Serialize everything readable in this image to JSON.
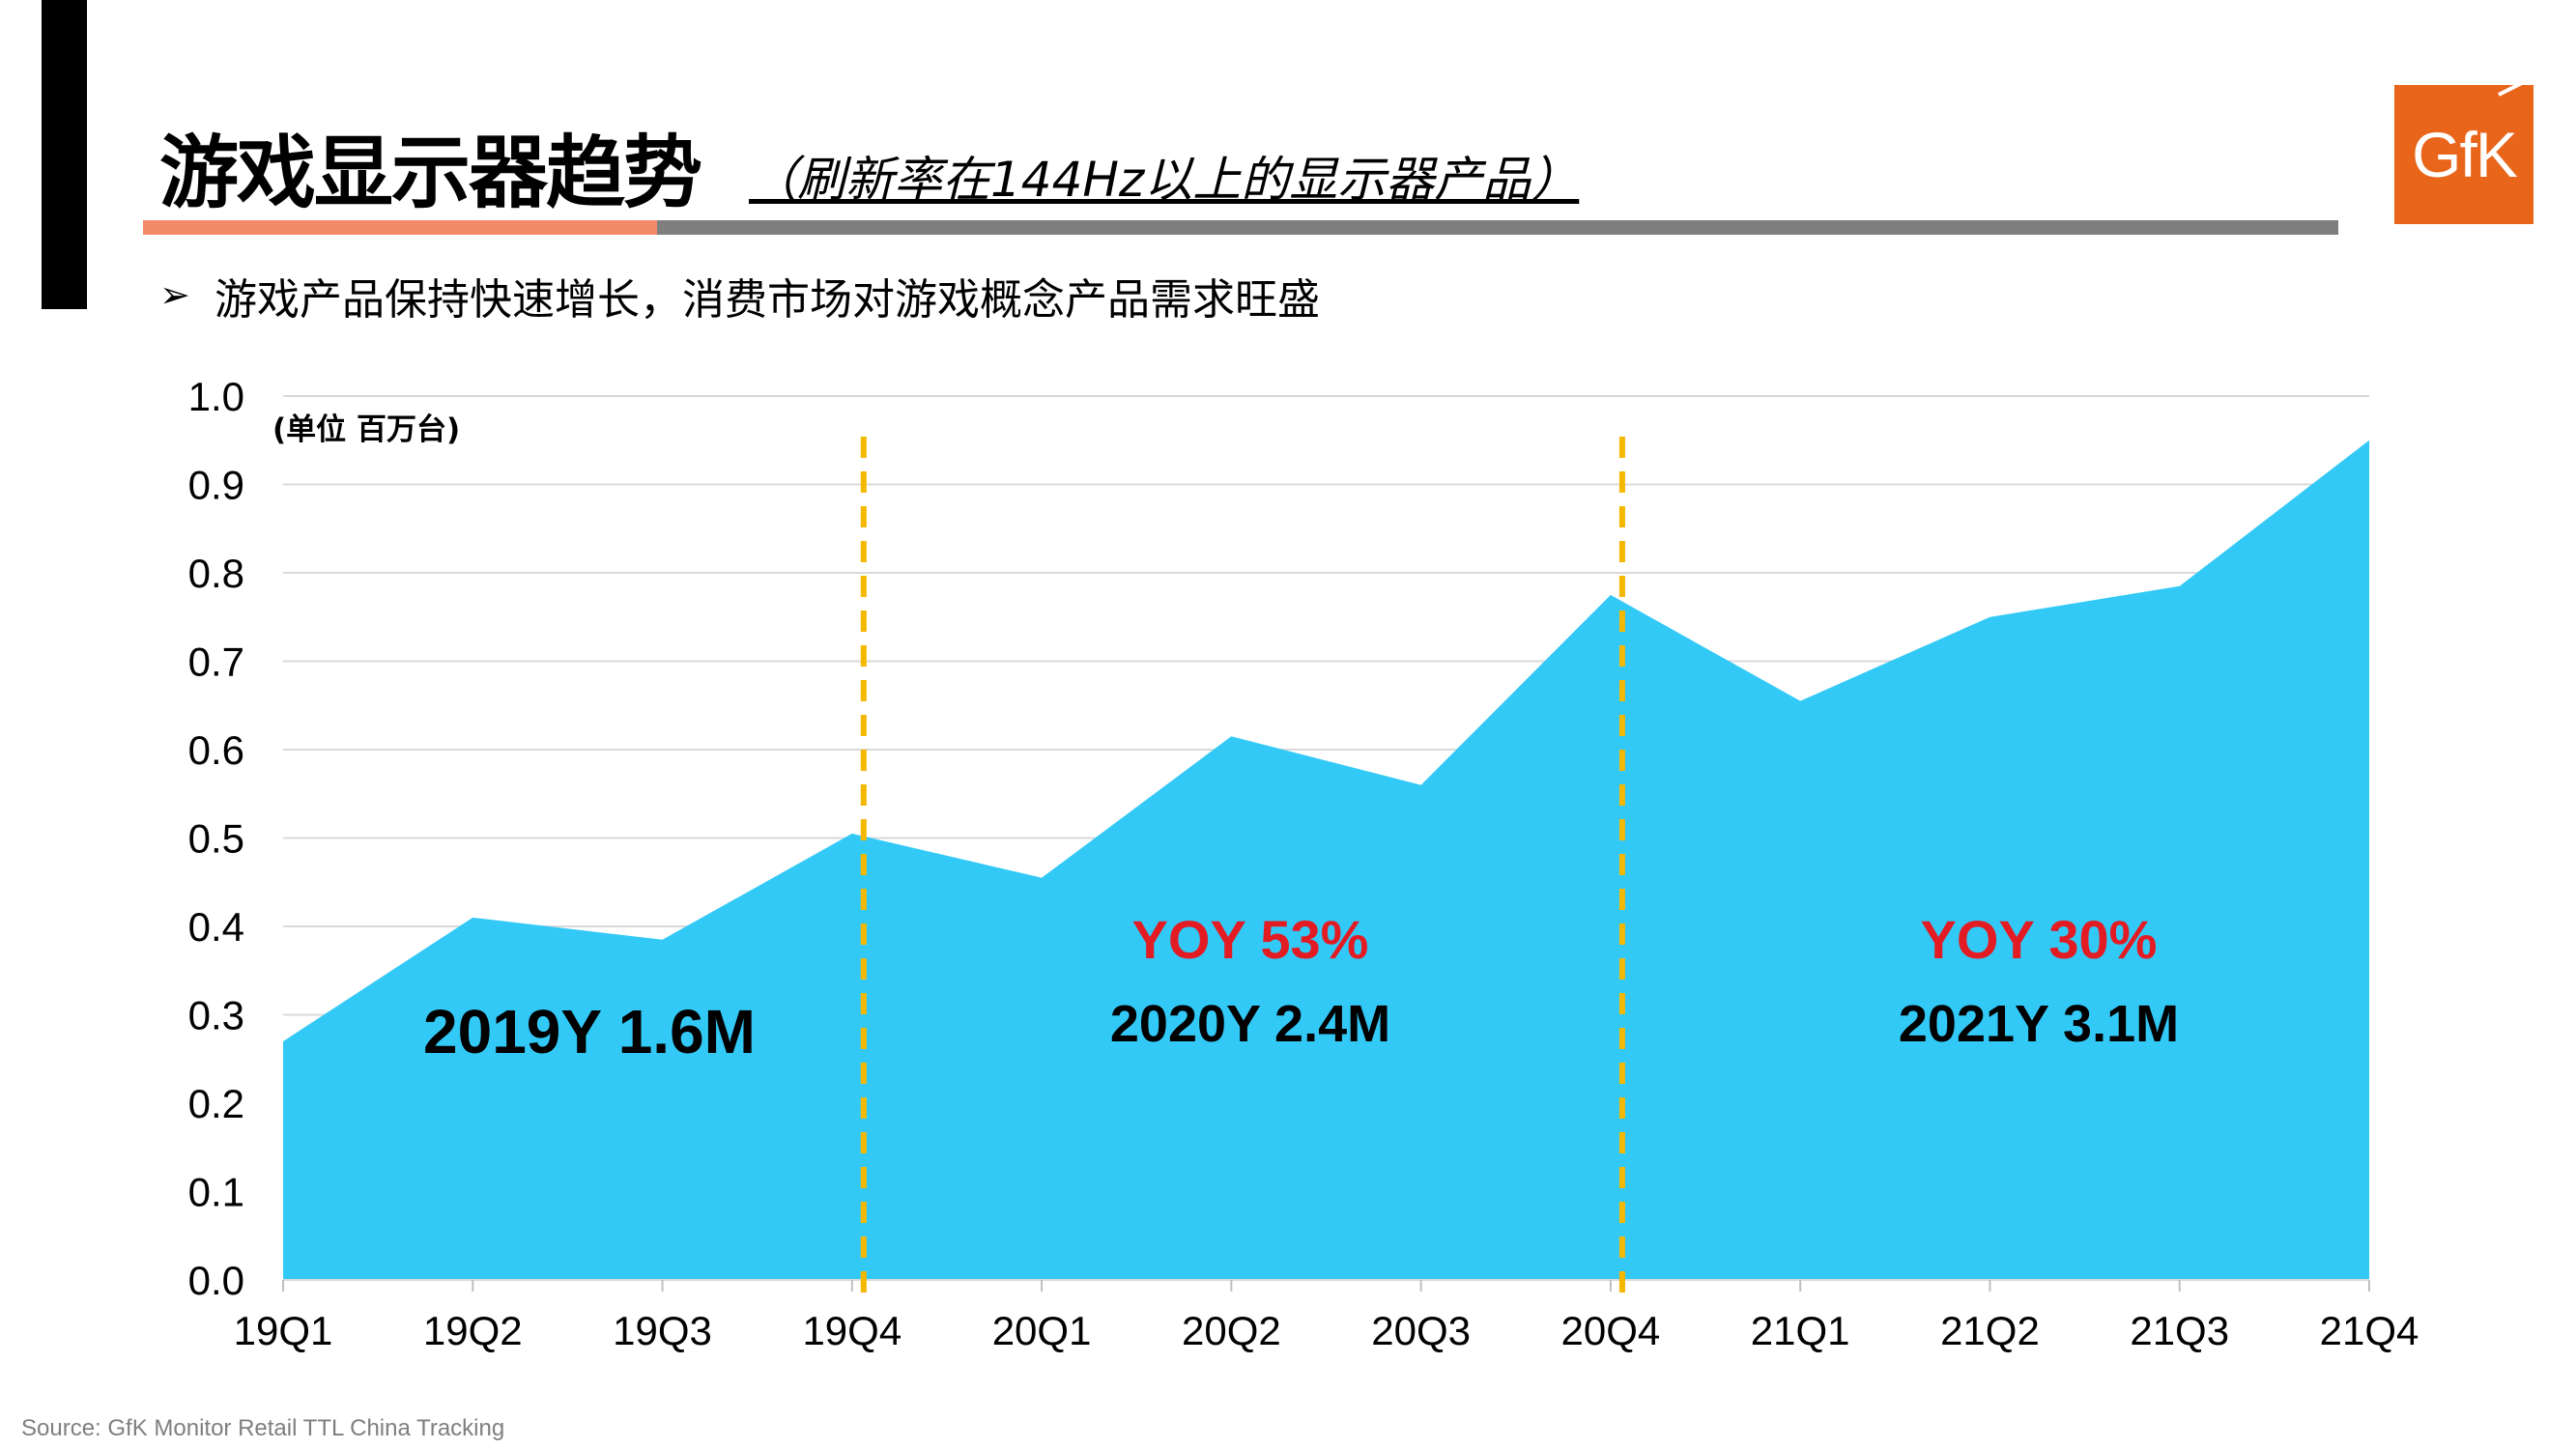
{
  "header": {
    "title": "游戏显示器趋势",
    "title_note": "（刷新率在144Hz以上的显示器产品）",
    "bullet": "游戏产品保持快速增长，消费市场对游戏概念产品需求旺盛"
  },
  "logo": {
    "text": "GfK",
    "color": "#e8651a"
  },
  "footer": {
    "source": "Source: GfK Monitor Retail TTL China Tracking"
  },
  "colors": {
    "area": "#33c9f7",
    "divider": "#f5b800",
    "yoy": "#e31b23",
    "grid": "#d9d9d9"
  },
  "chart_data": {
    "type": "area",
    "unit_label": "(单位 百万台)",
    "categories": [
      "19Q1",
      "19Q2",
      "19Q3",
      "19Q4",
      "20Q1",
      "20Q2",
      "20Q3",
      "20Q4",
      "21Q1",
      "21Q2",
      "21Q3",
      "21Q4"
    ],
    "values": [
      0.27,
      0.41,
      0.385,
      0.505,
      0.455,
      0.615,
      0.56,
      0.775,
      0.655,
      0.75,
      0.785,
      0.95
    ],
    "ylim": [
      0.0,
      1.0
    ],
    "yticks": [
      "0.0",
      "0.1",
      "0.2",
      "0.3",
      "0.4",
      "0.5",
      "0.6",
      "0.7",
      "0.8",
      "0.9",
      "1.0"
    ],
    "grid": true,
    "dividers_after": [
      "19Q4",
      "20Q4"
    ],
    "annotations": [
      {
        "id": "y2019",
        "text": "2019Y 1.6M"
      },
      {
        "id": "yoy2020",
        "text": "YOY 53%"
      },
      {
        "id": "y2020",
        "text": "2020Y 2.4M"
      },
      {
        "id": "yoy2021",
        "text": "YOY 30%"
      },
      {
        "id": "y2021",
        "text": "2021Y 3.1M"
      }
    ]
  }
}
